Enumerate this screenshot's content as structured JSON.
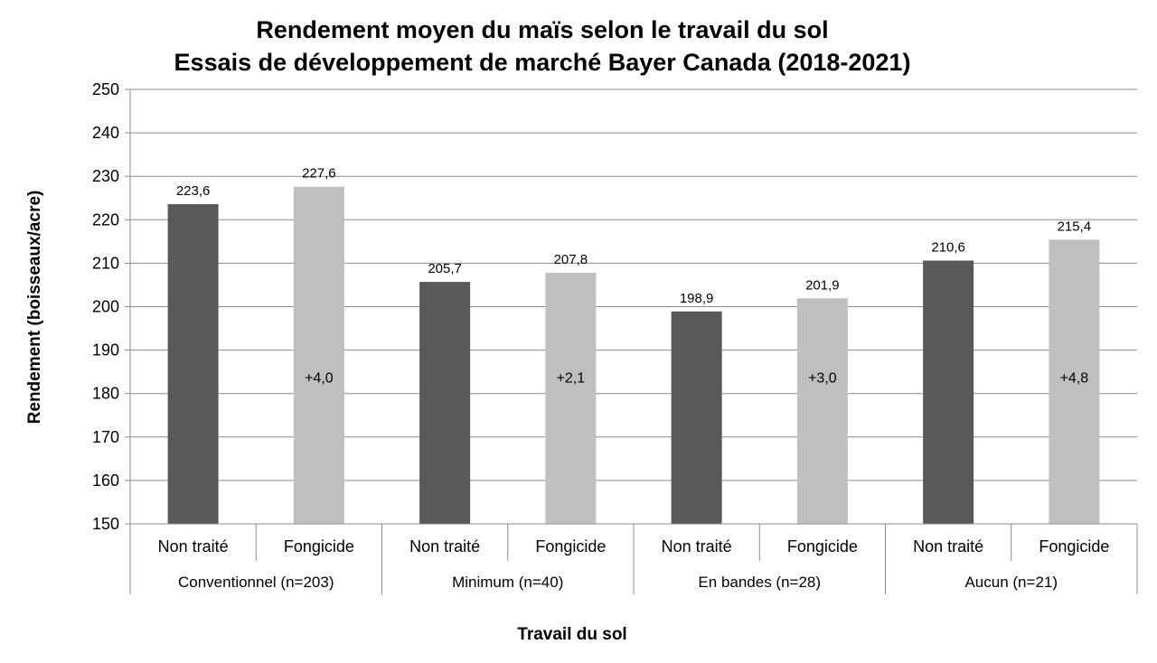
{
  "chart_data": {
    "type": "bar",
    "title": "Rendement moyen du maïs selon le travail du sol",
    "subtitle": "Essais de développement de marché Bayer Canada (2018-2021)",
    "xlabel": "Travail du sol",
    "ylabel": "Rendement (boisseaux/acre)",
    "ylim": [
      150,
      250
    ],
    "yticks": [
      "150",
      "160",
      "170",
      "180",
      "190",
      "200",
      "210",
      "220",
      "230",
      "240",
      "250"
    ],
    "grid": true,
    "legend": "none",
    "groups": [
      {
        "name": "Conventionnel (n=203)",
        "difference": "+4,0",
        "bars": [
          {
            "category": "Non traité",
            "value": 223.6,
            "label": "223,6",
            "color": "#595959"
          },
          {
            "category": "Fongicide",
            "value": 227.6,
            "label": "227,6",
            "color": "#bfbfbf"
          }
        ]
      },
      {
        "name": "Minimum (n=40)",
        "difference": "+2,1",
        "bars": [
          {
            "category": "Non traité",
            "value": 205.7,
            "label": "205,7",
            "color": "#595959"
          },
          {
            "category": "Fongicide",
            "value": 207.8,
            "label": "207,8",
            "color": "#bfbfbf"
          }
        ]
      },
      {
        "name": "En bandes (n=28)",
        "difference": "+3,0",
        "bars": [
          {
            "category": "Non traité",
            "value": 198.9,
            "label": "198,9",
            "color": "#595959"
          },
          {
            "category": "Fongicide",
            "value": 201.9,
            "label": "201,9",
            "color": "#bfbfbf"
          }
        ]
      },
      {
        "name": "Aucun (n=21)",
        "difference": "+4,8",
        "bars": [
          {
            "category": "Non traité",
            "value": 210.6,
            "label": "210,6",
            "color": "#595959"
          },
          {
            "category": "Fongicide",
            "value": 215.4,
            "label": "215,4",
            "color": "#bfbfbf"
          }
        ]
      }
    ],
    "colors": {
      "grid": "#8c8c8c",
      "axis": "#8c8c8c"
    }
  }
}
